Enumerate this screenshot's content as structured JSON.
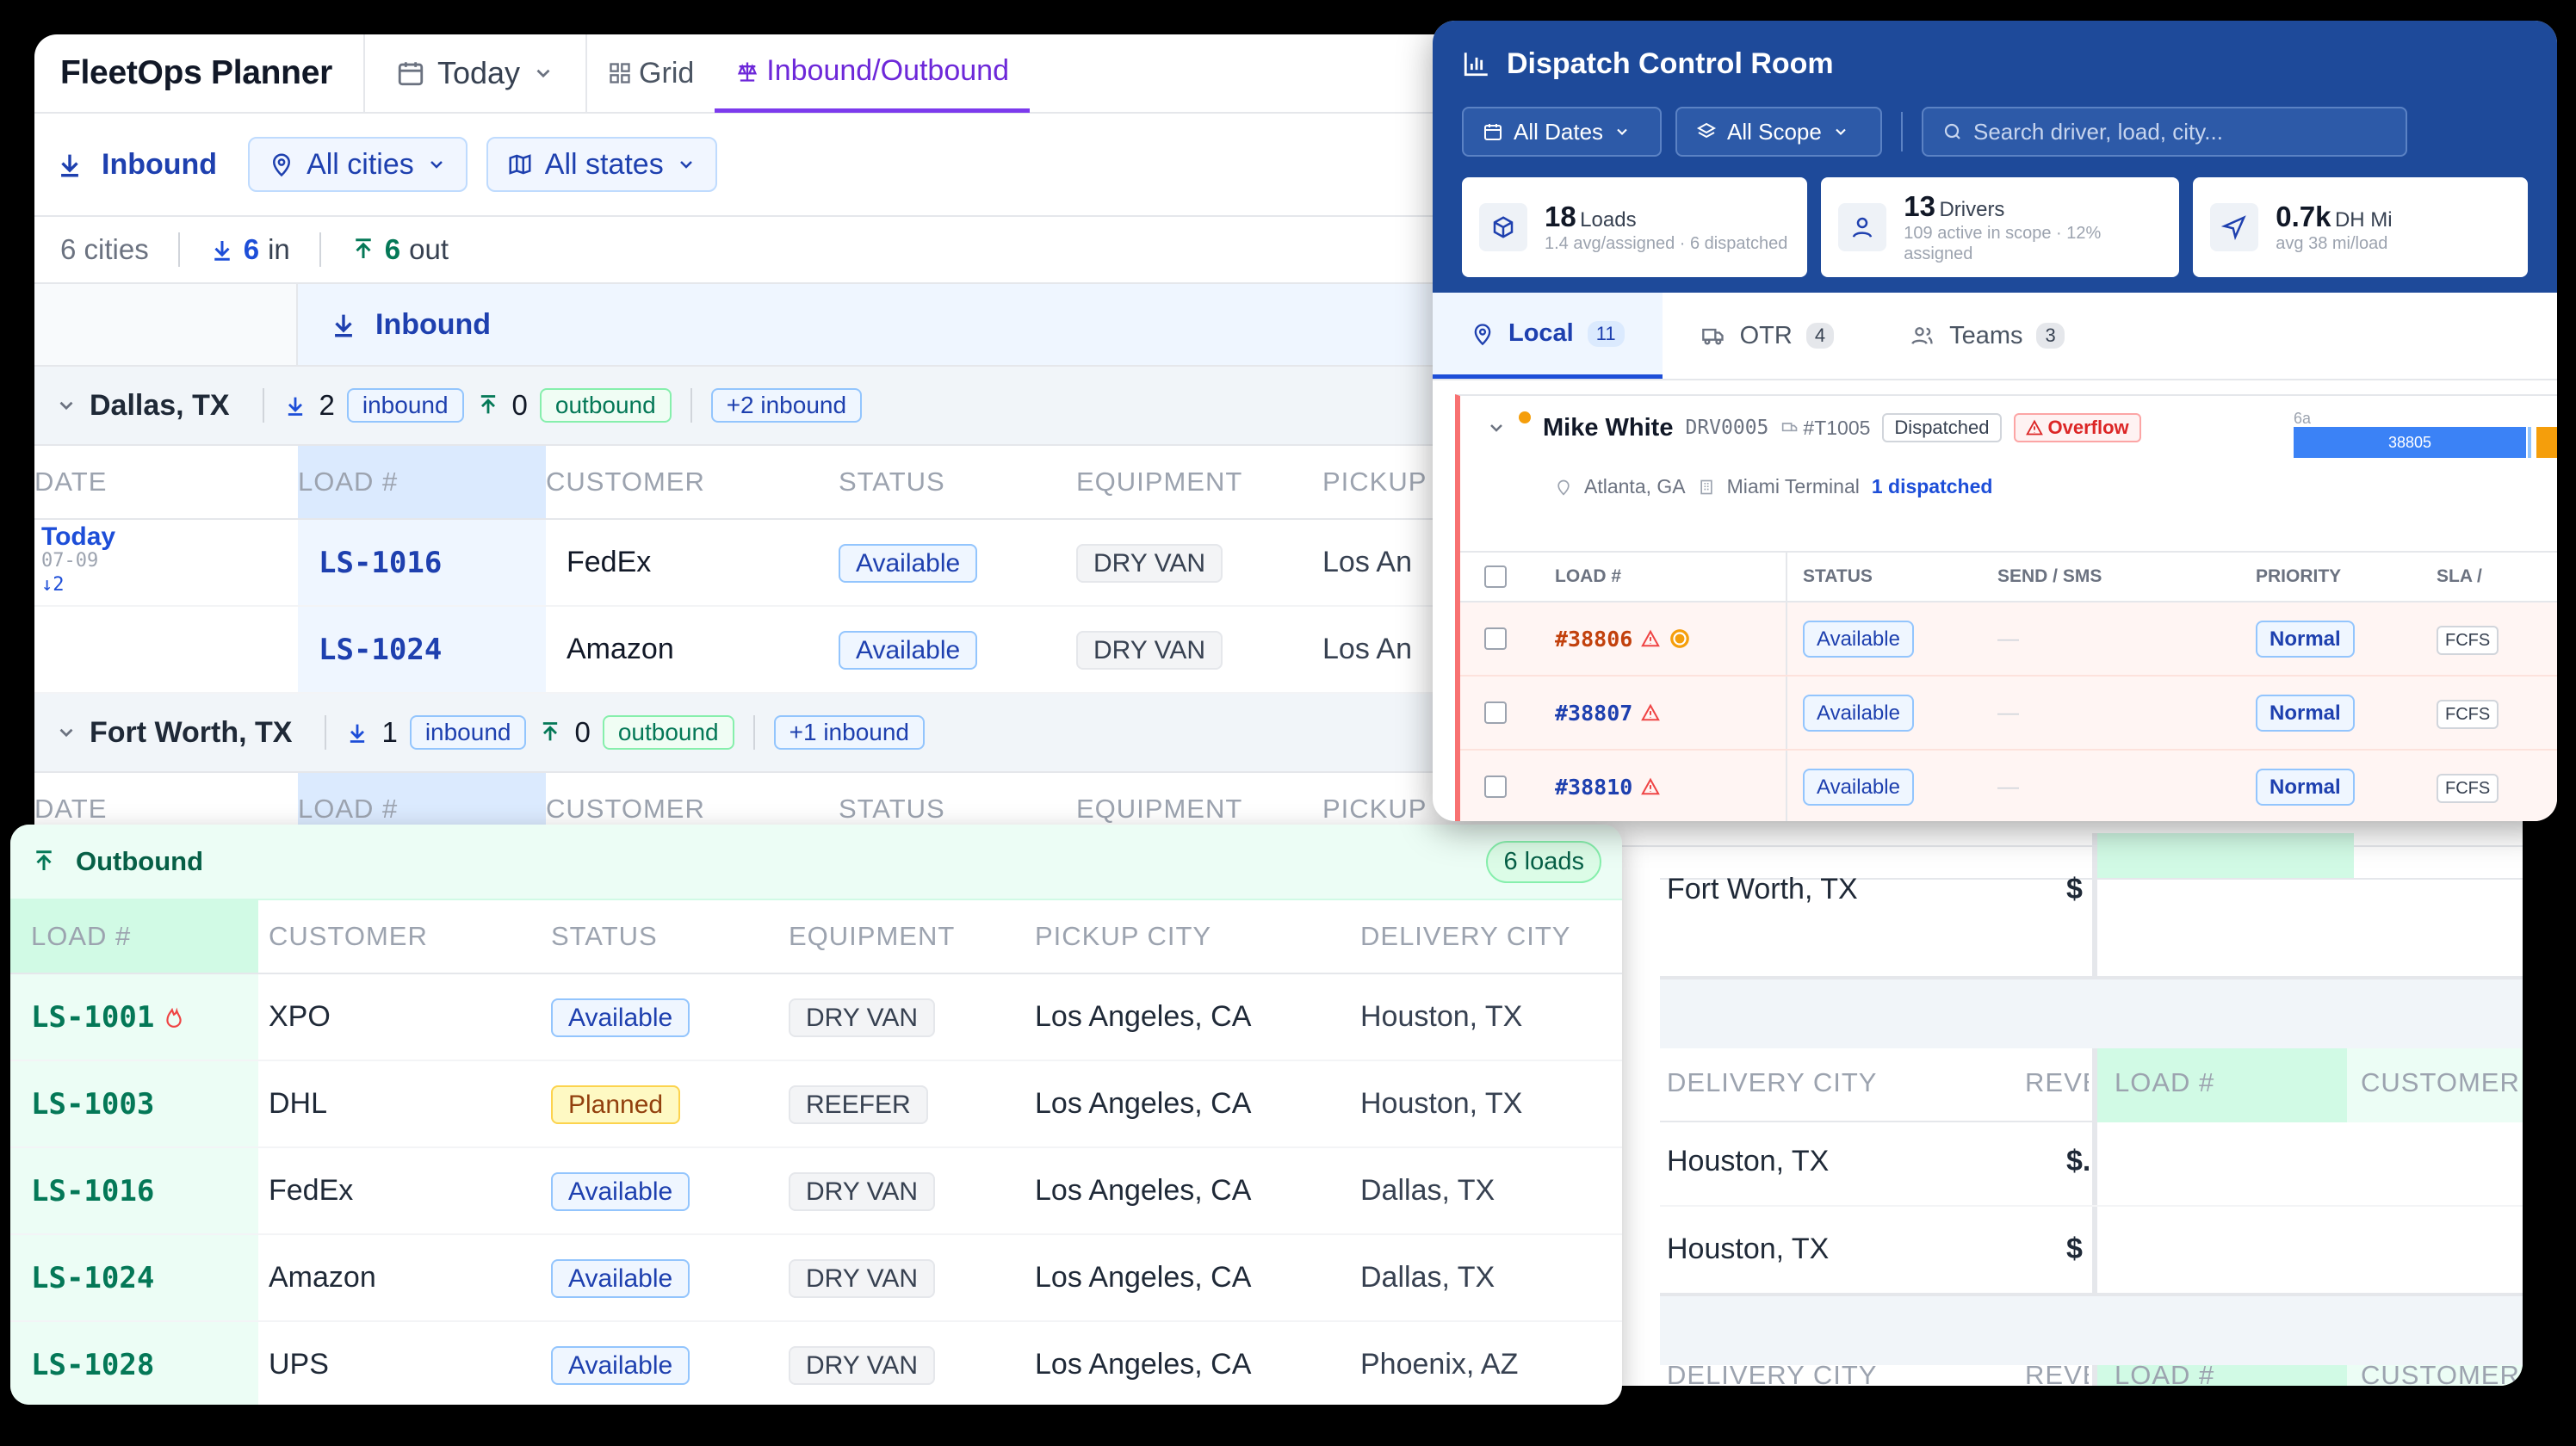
{
  "planner": {
    "app_title": "FleetOps Planner",
    "date_filter": "Today",
    "tabs": [
      {
        "label": "Grid"
      },
      {
        "label": "Inbound/Outbound"
      }
    ],
    "direction_filter": "Inbound",
    "city_filter": "All cities",
    "state_filter": "All states",
    "summary": {
      "cities": "6 cities",
      "in_count": "6",
      "in_label": "in",
      "out_count": "6",
      "out_label": "out"
    },
    "inbound_header": "Inbound",
    "columns": [
      "DATE",
      "LOAD #",
      "CUSTOMER",
      "STATUS",
      "EQUIPMENT",
      "PICKUP"
    ],
    "groups": [
      {
        "city": "Dallas, TX",
        "in_count": "2",
        "in_label": "inbound",
        "out_count": "0",
        "out_label": "outbound",
        "extra": "+2 inbound",
        "date_label": "Today",
        "date_sub": "07-09",
        "date_count": "↓2",
        "rows": [
          {
            "load": "LS-1016",
            "customer": "FedEx",
            "status": "Available",
            "equipment": "DRY VAN",
            "pickup": "Los An"
          },
          {
            "load": "LS-1024",
            "customer": "Amazon",
            "status": "Available",
            "equipment": "DRY VAN",
            "pickup": "Los An"
          }
        ]
      },
      {
        "city": "Fort Worth, TX",
        "in_count": "1",
        "in_label": "inbound",
        "out_count": "0",
        "out_label": "outbound",
        "extra": "+1 inbound"
      }
    ],
    "right": {
      "fw_city": "Fort Worth, TX",
      "dollar": "$",
      "col_delivery": "DELIVERY CITY",
      "col_revenue": "REVENU",
      "col_load": "LOAD #",
      "col_customer": "CUSTOMER",
      "rows": [
        "Houston, TX",
        "Houston, TX"
      ],
      "dollar2": "$."
    }
  },
  "outbound": {
    "title": "Outbound",
    "count": "6 loads",
    "columns": [
      "LOAD #",
      "CUSTOMER",
      "STATUS",
      "EQUIPMENT",
      "PICKUP CITY",
      "DELIVERY CITY"
    ],
    "rows": [
      {
        "load": "LS-1001",
        "hot": true,
        "customer": "XPO",
        "status": "Available",
        "equipment": "DRY VAN",
        "pickup": "Los Angeles, CA",
        "delivery": "Houston, TX"
      },
      {
        "load": "LS-1003",
        "customer": "DHL",
        "status": "Planned",
        "equipment": "REEFER",
        "pickup": "Los Angeles, CA",
        "delivery": "Houston, TX"
      },
      {
        "load": "LS-1016",
        "customer": "FedEx",
        "status": "Available",
        "equipment": "DRY VAN",
        "pickup": "Los Angeles, CA",
        "delivery": "Dallas, TX"
      },
      {
        "load": "LS-1024",
        "customer": "Amazon",
        "status": "Available",
        "equipment": "DRY VAN",
        "pickup": "Los Angeles, CA",
        "delivery": "Dallas, TX"
      },
      {
        "load": "LS-1028",
        "customer": "UPS",
        "status": "Available",
        "equipment": "DRY VAN",
        "pickup": "Los Angeles, CA",
        "delivery": "Phoenix, AZ"
      }
    ]
  },
  "dispatch": {
    "title": "Dispatch Control Room",
    "dates": "All Dates",
    "scope": "All Scope",
    "search_placeholder": "Search driver, load, city...",
    "stats": [
      {
        "num": "18",
        "label": "Loads",
        "sub": "1.4 avg/assigned · 6 dispatched"
      },
      {
        "num": "13",
        "label": "Drivers",
        "sub": "109 active in scope · 12% assigned"
      },
      {
        "num": "0.7k",
        "label": "DH Mi",
        "sub": "avg 38 mi/load"
      }
    ],
    "tabs": [
      {
        "label": "Local",
        "count": "11"
      },
      {
        "label": "OTR",
        "count": "4"
      },
      {
        "label": "Teams",
        "count": "3"
      }
    ],
    "driver": {
      "name": "Mike White",
      "id": "DRV0005",
      "truck": "#T1005",
      "status": "Dispatched",
      "flag": "Overflow",
      "city": "Atlanta, GA",
      "terminal": "Miami Terminal",
      "dispatched": "1 dispatched",
      "timeline_label": "6a",
      "timeline_load": "38805"
    },
    "columns": [
      "LOAD #",
      "STATUS",
      "SEND / SMS",
      "PRIORITY",
      "SLA /"
    ],
    "rows": [
      {
        "load": "#38806",
        "status": "Available",
        "sms": "—",
        "priority": "Normal",
        "sla": "FCFS"
      },
      {
        "load": "#38807",
        "status": "Available",
        "sms": "—",
        "priority": "Normal",
        "sla": "FCFS"
      },
      {
        "load": "#38810",
        "status": "Available",
        "sms": "—",
        "priority": "Normal",
        "sla": "FCFS"
      }
    ]
  },
  "colors": {
    "accent_purple": "#7c3aed",
    "inbound_blue": "#1e40af",
    "outbound_green": "#047857",
    "dispatch_header": "#1e4a9a",
    "overflow_red": "#dc2626"
  }
}
